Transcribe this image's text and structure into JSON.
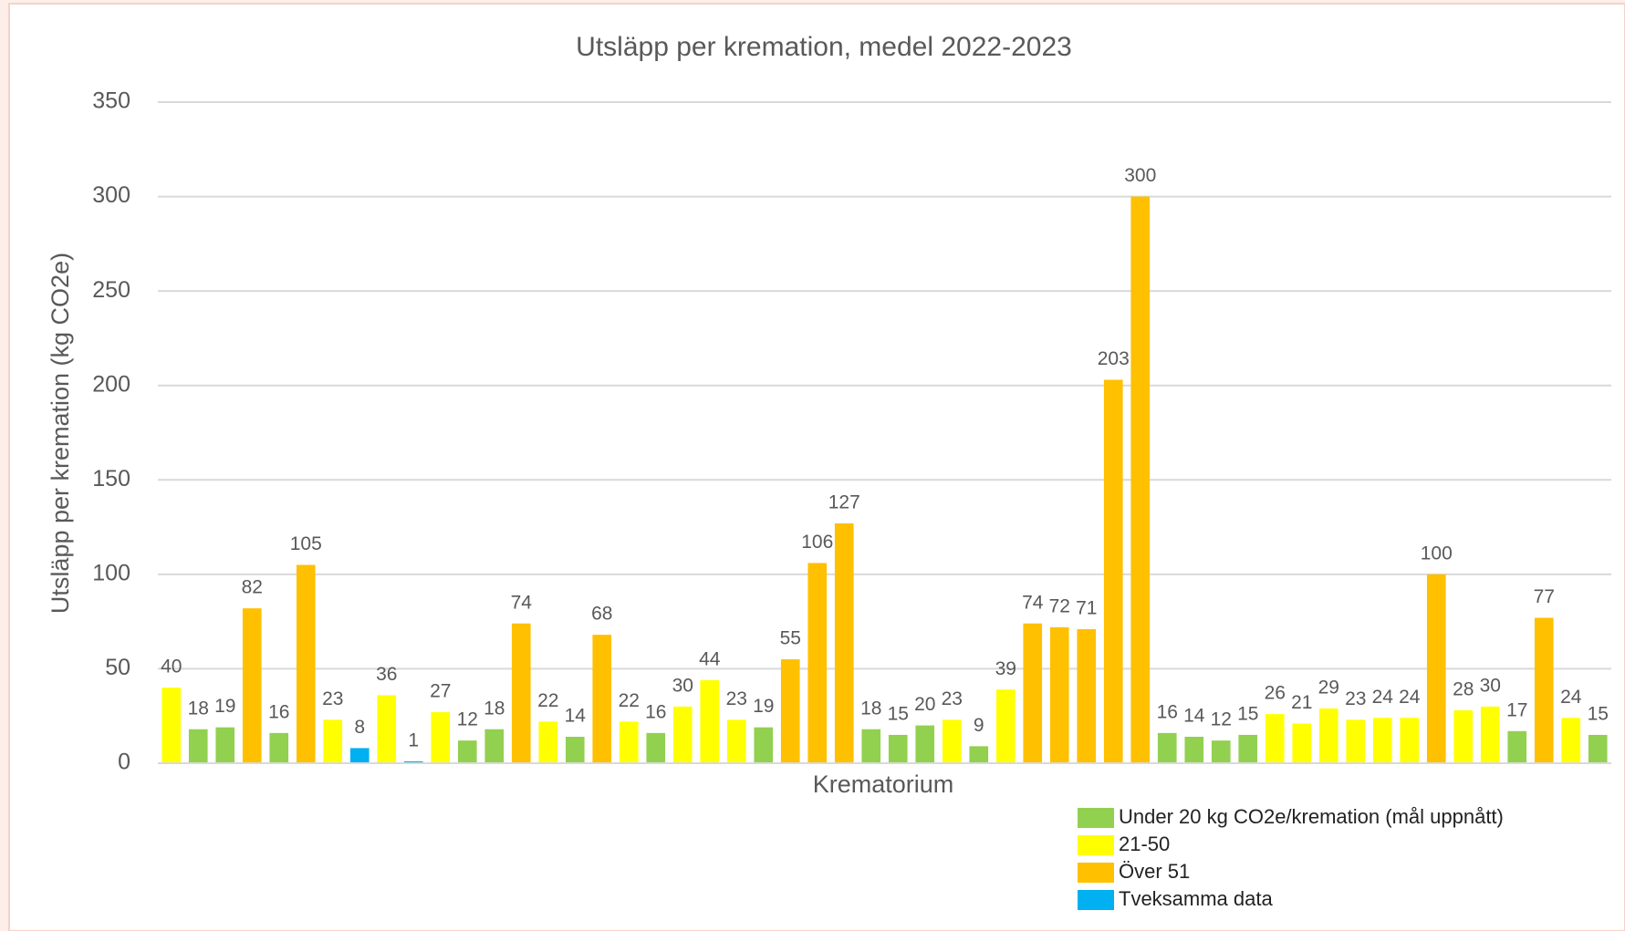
{
  "chart_data": {
    "type": "bar",
    "title": "Utsläpp per kremation, medel 2022-2023",
    "x_label": "Krematorium",
    "y_label": "Utsläpp per kremation (kg CO2e)",
    "categories": [
      null,
      null,
      null,
      null,
      null,
      null,
      null,
      null,
      null,
      null,
      null,
      null,
      null,
      null,
      null,
      null,
      null,
      null,
      null,
      null,
      null,
      null,
      null,
      null,
      null,
      null,
      null,
      null,
      null,
      null,
      null,
      null,
      null,
      null,
      null,
      null,
      null,
      null,
      null,
      null,
      null,
      null,
      null,
      null,
      null,
      null,
      null,
      null,
      null,
      null,
      null,
      null,
      null,
      null
    ],
    "series": [
      {
        "name": "Under 20 kg CO2e/kremation (mål uppnått)",
        "color": "#92d050",
        "values": [
          null,
          18,
          19,
          null,
          16,
          null,
          null,
          null,
          null,
          null,
          null,
          12,
          18,
          null,
          null,
          14,
          null,
          null,
          16,
          null,
          null,
          null,
          19,
          null,
          null,
          null,
          18,
          15,
          20,
          null,
          9,
          null,
          null,
          null,
          null,
          null,
          null,
          16,
          14,
          12,
          15,
          null,
          null,
          null,
          null,
          null,
          null,
          null,
          null,
          null,
          17,
          null,
          null,
          15
        ]
      },
      {
        "name": "21-50",
        "color": "#ffff00",
        "values": [
          40,
          null,
          null,
          null,
          null,
          null,
          23,
          null,
          36,
          null,
          27,
          null,
          null,
          null,
          22,
          null,
          null,
          22,
          null,
          30,
          44,
          23,
          null,
          null,
          null,
          null,
          null,
          null,
          null,
          23,
          null,
          39,
          null,
          null,
          null,
          null,
          null,
          null,
          null,
          null,
          null,
          26,
          21,
          29,
          23,
          24,
          24,
          null,
          28,
          30,
          null,
          null,
          24,
          null
        ]
      },
      {
        "name": "Över 51",
        "color": "#ffc000",
        "values": [
          null,
          null,
          null,
          82,
          null,
          105,
          null,
          null,
          null,
          null,
          null,
          null,
          null,
          74,
          null,
          null,
          68,
          null,
          null,
          null,
          null,
          null,
          null,
          55,
          106,
          127,
          null,
          null,
          null,
          null,
          null,
          null,
          74,
          72,
          71,
          203,
          300,
          null,
          null,
          null,
          null,
          null,
          null,
          null,
          null,
          null,
          null,
          100,
          null,
          null,
          null,
          77,
          null,
          null
        ]
      },
      {
        "name": "Tveksamma data",
        "color": "#00b0f0",
        "values": [
          null,
          null,
          null,
          null,
          null,
          null,
          null,
          8,
          null,
          1,
          null,
          null,
          null,
          null,
          null,
          null,
          null,
          null,
          null,
          null,
          null,
          null,
          null,
          null,
          null,
          null,
          null,
          null,
          null,
          null,
          null,
          null,
          null,
          null,
          null,
          null,
          null,
          null,
          null,
          null,
          null,
          null,
          null,
          null,
          null,
          null,
          null,
          null,
          null,
          null,
          null,
          null,
          null,
          null
        ]
      }
    ],
    "ylim": [
      0,
      350
    ],
    "yticks": [
      0,
      50,
      100,
      150,
      200,
      250,
      300,
      350
    ],
    "grid": true,
    "legend": "bottom-right"
  }
}
